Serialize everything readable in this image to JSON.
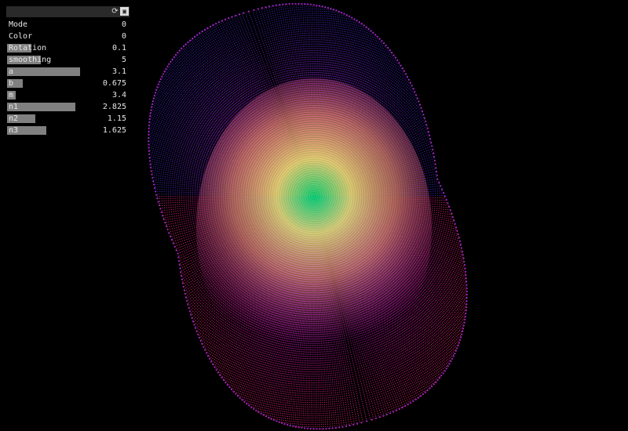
{
  "gui": {
    "params": [
      {
        "key": "mode",
        "label": "Mode",
        "value": "0",
        "type": "toggle",
        "fill": 0
      },
      {
        "key": "color",
        "label": "Color",
        "value": "0",
        "type": "toggle",
        "fill": 0
      },
      {
        "key": "rotation",
        "label": "Rotation",
        "value": "0.1",
        "type": "slider",
        "fill": 0.2
      },
      {
        "key": "smoothing",
        "label": "smoothing",
        "value": "5",
        "type": "slider",
        "fill": 0.28
      },
      {
        "key": "a",
        "label": "a",
        "value": "3.1",
        "type": "slider",
        "fill": 0.6
      },
      {
        "key": "b",
        "label": "b",
        "value": "0.675",
        "type": "slider",
        "fill": 0.13
      },
      {
        "key": "m",
        "label": "m",
        "value": "3.4",
        "type": "slider",
        "fill": 0.07
      },
      {
        "key": "n1",
        "label": "n1",
        "value": "2.825",
        "type": "slider",
        "fill": 0.56
      },
      {
        "key": "n2",
        "label": "n2",
        "value": "1.15",
        "type": "slider",
        "fill": 0.23
      },
      {
        "key": "n3",
        "label": "n3",
        "value": "1.625",
        "type": "slider",
        "fill": 0.32
      }
    ],
    "icons": {
      "refresh": "refresh-icon",
      "save": "save-icon"
    }
  },
  "visual": {
    "shape": "supershape",
    "colors": {
      "top": "#3a2bd6",
      "upper": "#8a2be2",
      "center_green": "#00e676",
      "center_yellow": "#f5f07a",
      "lower_salmon": "#ff9a7a",
      "outer_magenta": "#d11aa8",
      "bottom_pink": "#ff2a7a"
    }
  }
}
